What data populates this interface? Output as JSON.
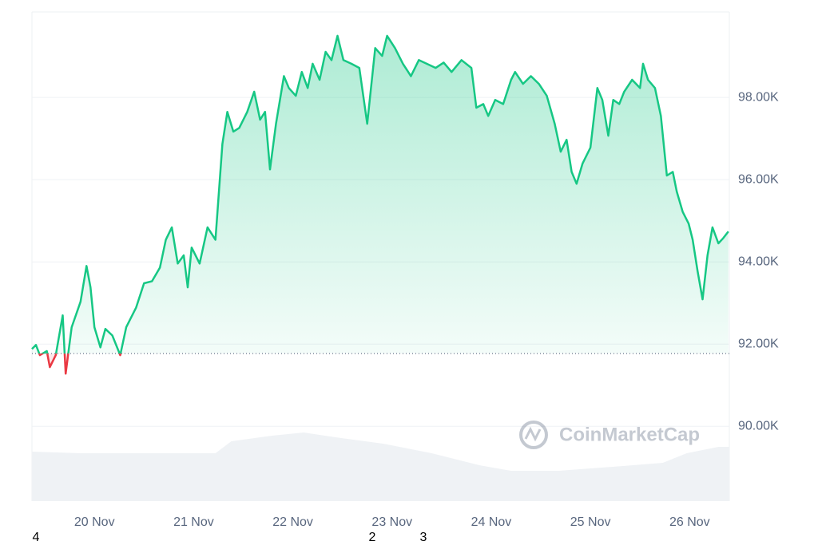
{
  "chart_data": {
    "type": "line",
    "x": [
      19.37,
      19.41,
      19.45,
      19.52,
      19.55,
      19.61,
      19.68,
      19.71,
      19.77,
      19.86,
      19.92,
      19.96,
      20.0,
      20.06,
      20.11,
      20.18,
      20.26,
      20.32,
      20.42,
      20.5,
      20.58,
      20.66,
      20.72,
      20.78,
      20.84,
      20.9,
      20.94,
      20.98,
      21.06,
      21.14,
      21.22,
      21.29,
      21.34,
      21.4,
      21.46,
      21.54,
      21.61,
      21.67,
      21.72,
      21.77,
      21.83,
      21.91,
      21.96,
      22.03,
      22.09,
      22.15,
      22.2,
      22.27,
      22.33,
      22.39,
      22.45,
      22.51,
      22.59,
      22.67,
      22.75,
      22.83,
      22.9,
      22.95,
      23.03,
      23.11,
      23.19,
      23.27,
      23.35,
      23.44,
      23.52,
      23.6,
      23.7,
      23.8,
      23.85,
      23.92,
      23.97,
      24.04,
      24.12,
      24.2,
      24.24,
      24.32,
      24.4,
      24.48,
      24.56,
      24.64,
      24.7,
      24.76,
      24.81,
      24.86,
      24.92,
      25.0,
      25.07,
      25.12,
      25.18,
      25.23,
      25.29,
      25.34,
      25.42,
      25.5,
      25.53,
      25.58,
      25.65,
      25.71,
      25.77,
      25.83,
      25.87,
      25.93,
      25.99,
      26.03,
      26.08,
      26.13,
      26.18,
      26.23,
      26.29,
      26.34,
      26.39
    ],
    "values": [
      91880,
      91980,
      91730,
      91830,
      91440,
      91730,
      92700,
      91280,
      92410,
      93030,
      93900,
      93380,
      92410,
      91920,
      92370,
      92210,
      91730,
      92410,
      92890,
      93480,
      93530,
      93860,
      94540,
      94840,
      93960,
      94160,
      93380,
      94350,
      93960,
      94840,
      94540,
      96870,
      97650,
      97170,
      97260,
      97650,
      98140,
      97460,
      97650,
      96250,
      97360,
      98520,
      98230,
      98040,
      98620,
      98230,
      98820,
      98430,
      99110,
      98910,
      99500,
      98910,
      98820,
      98720,
      97360,
      99200,
      99010,
      99500,
      99200,
      98820,
      98520,
      98910,
      98820,
      98720,
      98850,
      98620,
      98910,
      98720,
      97750,
      97840,
      97550,
      97940,
      97840,
      98430,
      98620,
      98330,
      98520,
      98330,
      98040,
      97360,
      96680,
      96970,
      96190,
      95900,
      96390,
      96780,
      98230,
      97940,
      97070,
      97940,
      97840,
      98140,
      98430,
      98230,
      98820,
      98430,
      98230,
      97550,
      96100,
      96190,
      95710,
      95220,
      94930,
      94540,
      93770,
      93090,
      94160,
      94840,
      94450,
      94580,
      94740
    ],
    "color": "#16c784",
    "down_color": "#ea3943",
    "baseline": 91770,
    "volume": {
      "x": [
        19.37,
        19.86,
        20.66,
        21.22,
        21.38,
        21.79,
        22.11,
        22.43,
        22.91,
        23.4,
        23.88,
        24.2,
        24.68,
        25.33,
        25.73,
        25.97,
        26.29,
        26.4
      ],
      "values": [
        62,
        60,
        60,
        60,
        75,
        82,
        86,
        80,
        72,
        60,
        45,
        38,
        38,
        44,
        48,
        60,
        68,
        68
      ],
      "vlim": [
        0,
        100
      ],
      "color": "#eff2f5"
    },
    "xlim": [
      19.37,
      26.4
    ],
    "xticks": [
      {
        "value": 20,
        "label": "20 Nov"
      },
      {
        "value": 21,
        "label": "21 Nov"
      },
      {
        "value": 22,
        "label": "22 Nov"
      },
      {
        "value": 23,
        "label": "23 Nov"
      },
      {
        "value": 24,
        "label": "24 Nov"
      },
      {
        "value": 25,
        "label": "25 Nov"
      },
      {
        "value": 26,
        "label": "26 Nov"
      }
    ],
    "ylim": [
      88180,
      100080
    ],
    "yticks": [
      {
        "value": 90000,
        "label": "90.00K"
      },
      {
        "value": 92000,
        "label": "92.00K"
      },
      {
        "value": 94000,
        "label": "94.00K"
      },
      {
        "value": 96000,
        "label": "96.00K"
      },
      {
        "value": 98000,
        "label": "98.00K"
      }
    ],
    "grid": true,
    "watermark": "CoinMarketCap",
    "annotations": [
      "4",
      "2",
      "3"
    ]
  }
}
